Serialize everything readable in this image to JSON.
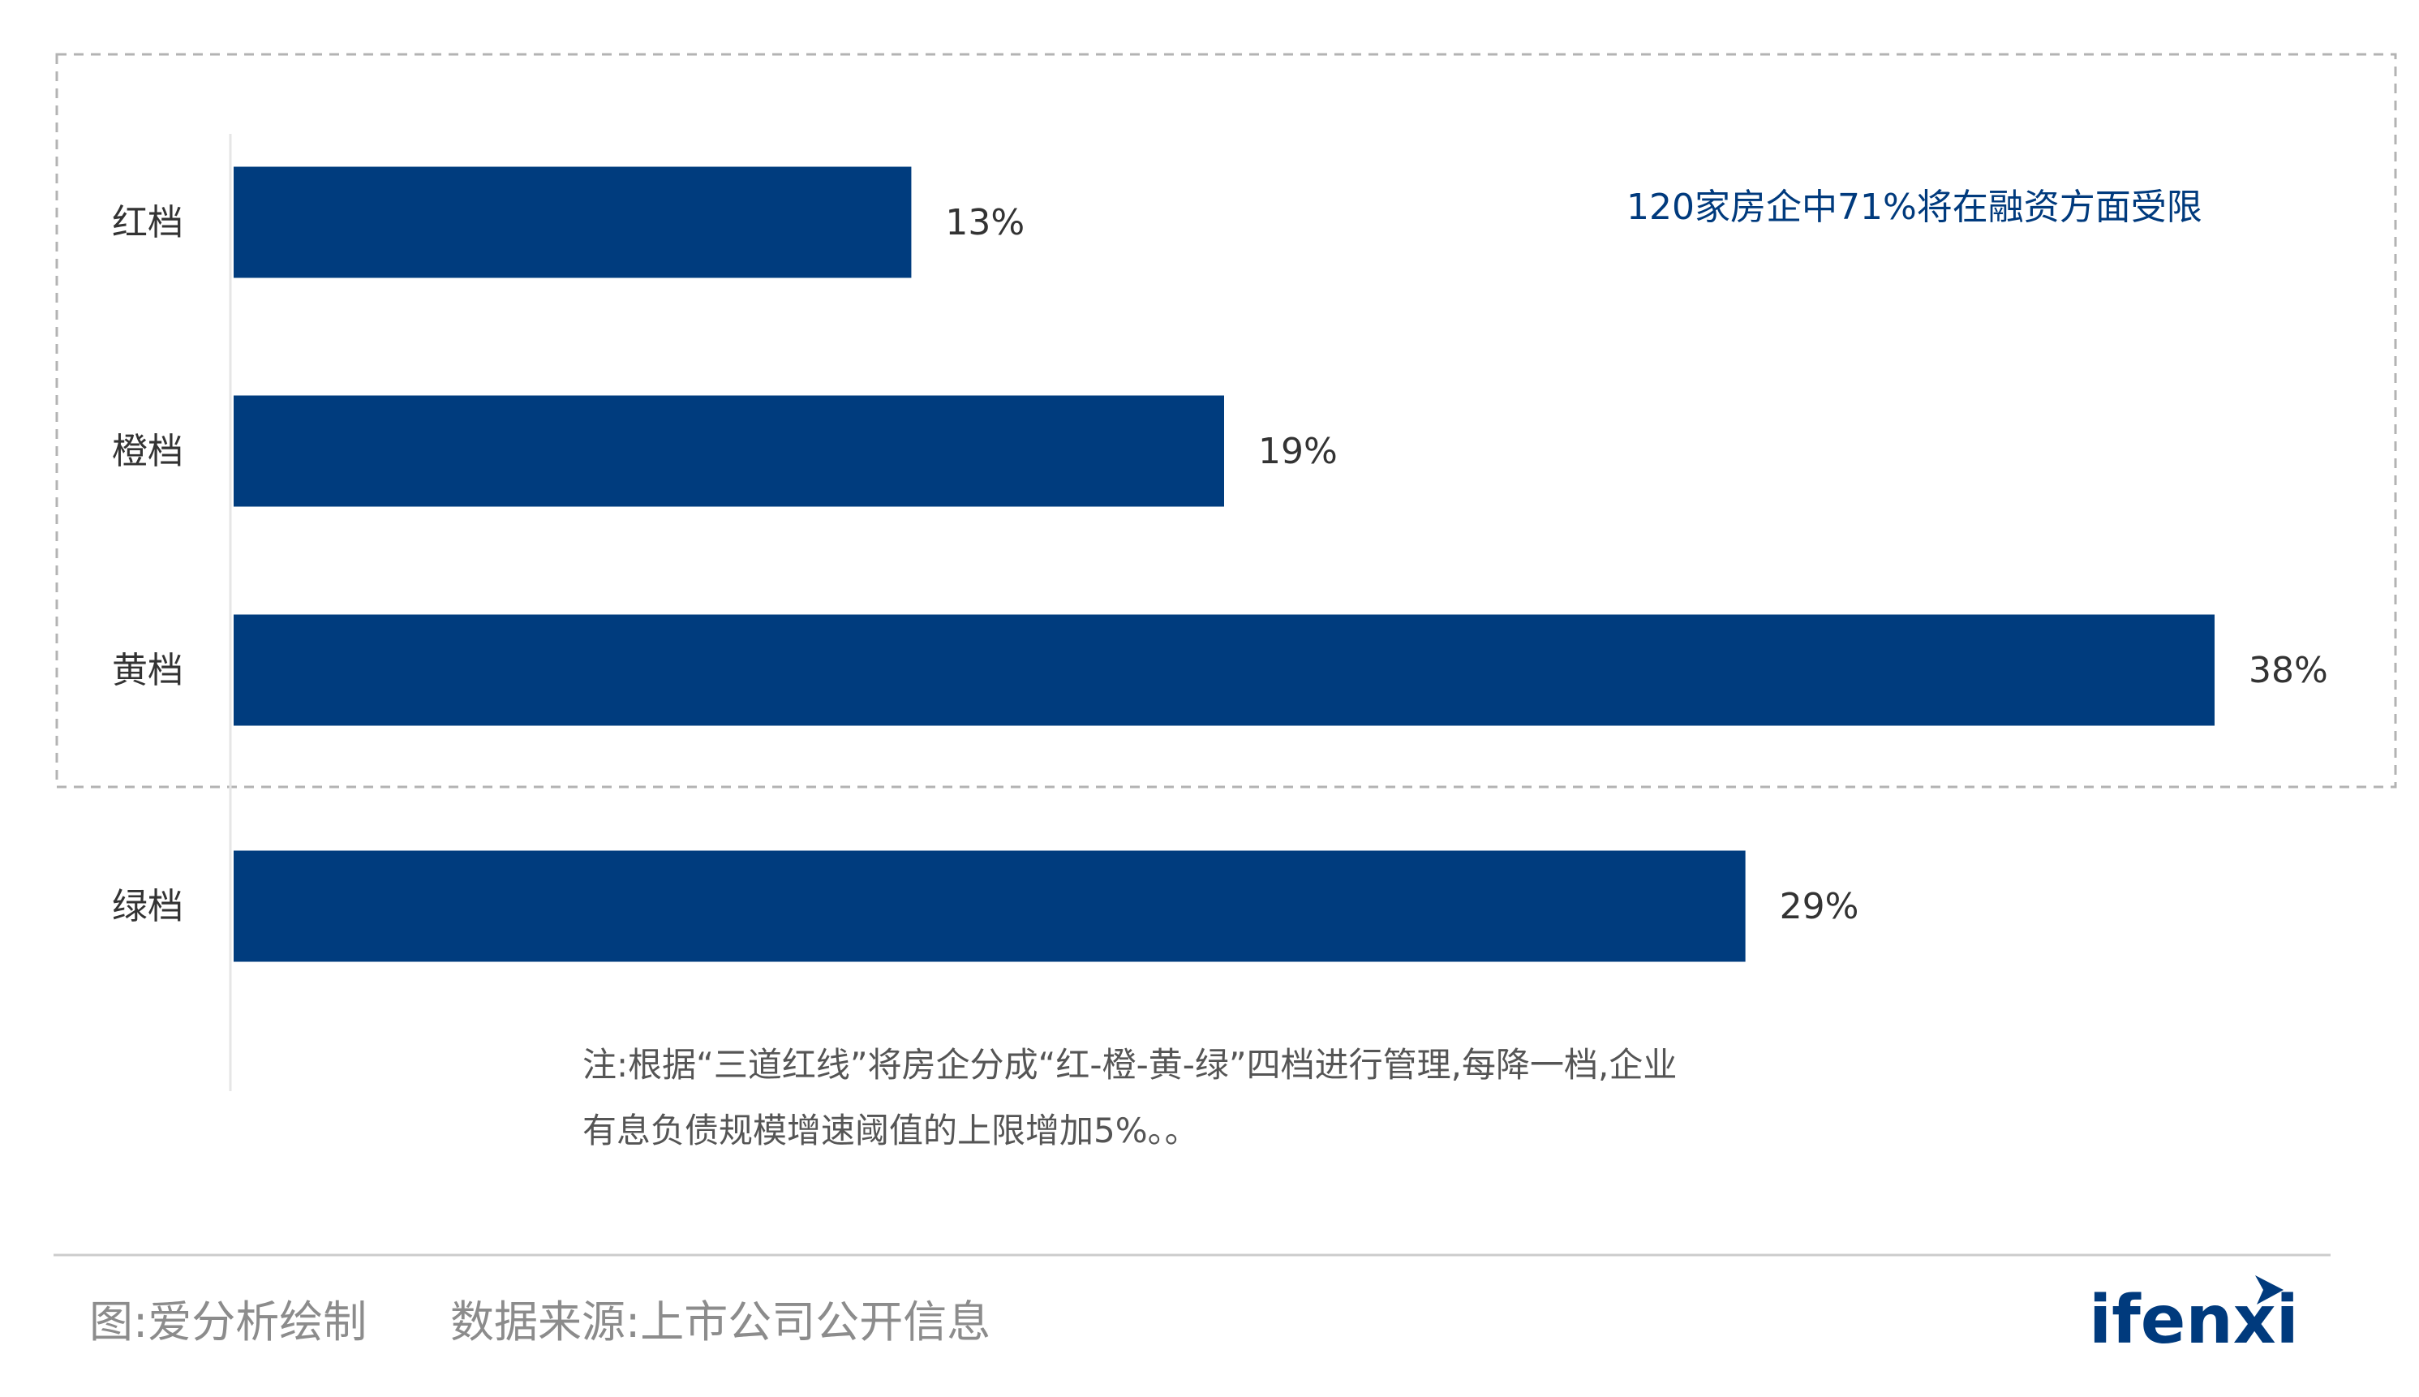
{
  "chart_data": {
    "type": "bar",
    "orientation": "horizontal",
    "categories": [
      "红档",
      "橙档",
      "黄档",
      "绿档"
    ],
    "values": [
      13,
      19,
      38,
      29
    ],
    "value_labels": [
      "13%",
      "19%",
      "38%",
      "29%"
    ],
    "unit": "%",
    "xlim": [
      0,
      38
    ],
    "bar_color": "#003c7e",
    "grid": false,
    "legend": "none",
    "annotation": "120家房企中71%将在融资方面受限",
    "highlight_box": {
      "style": "dashed",
      "color": "#b3b3b3",
      "covers_categories": [
        "红档",
        "橙档",
        "黄档"
      ]
    }
  },
  "note": {
    "line1": "注:根据“三道红线”将房企分成“红-橙-黄-绿”四档进行管理,每降一档,企业",
    "line2": "有息负债规模增速阈值的上限增加5%。。"
  },
  "footer": {
    "credit": "图:爱分析绘制",
    "source": "数据来源:上市公司公开信息",
    "logo": "ifenxi"
  },
  "colors": {
    "accent": "#003c7e",
    "callout_text": "#003a7d",
    "footer_text": "#8c8c8c",
    "divider": "#cccccc"
  }
}
